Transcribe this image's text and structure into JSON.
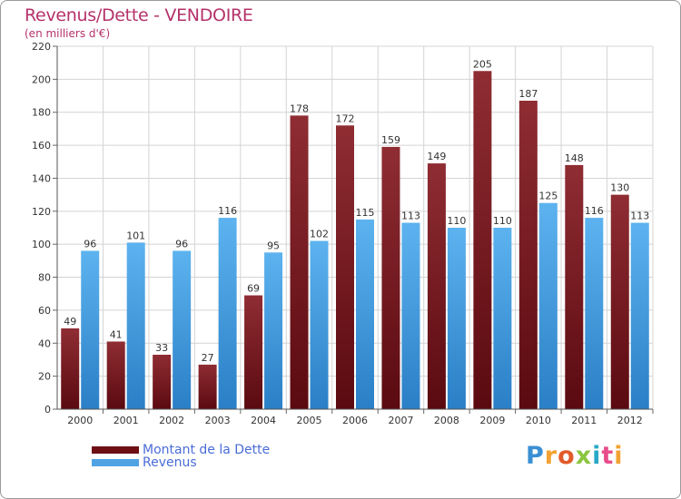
{
  "chart_data": {
    "type": "bar",
    "title": "Revenus/Dette - VENDOIRE",
    "subtitle": "(en milliers d'€)",
    "categories": [
      "2000",
      "2001",
      "2002",
      "2003",
      "2004",
      "2005",
      "2006",
      "2007",
      "2008",
      "2009",
      "2010",
      "2011",
      "2012"
    ],
    "series": [
      {
        "name": "Montant de la Dette",
        "color": "#7a1a1f",
        "values": [
          49,
          41,
          33,
          27,
          69,
          178,
          172,
          159,
          149,
          205,
          187,
          148,
          130
        ]
      },
      {
        "name": "Revenus",
        "color": "#4fa3e3",
        "values": [
          96,
          101,
          96,
          116,
          95,
          102,
          115,
          113,
          110,
          110,
          125,
          116,
          113
        ]
      }
    ],
    "ylim": [
      0,
      220
    ],
    "yticks": [
      0,
      20,
      40,
      60,
      80,
      100,
      120,
      140,
      160,
      180,
      200,
      220
    ],
    "grid": true,
    "legend_position": "bottom-left"
  },
  "legend": {
    "items": [
      {
        "label": "Montant de la Dette",
        "color": "#6e0f14"
      },
      {
        "label": "Revenus",
        "color": "#4fa3e3"
      }
    ]
  },
  "logo": {
    "text": "Proxiti"
  }
}
